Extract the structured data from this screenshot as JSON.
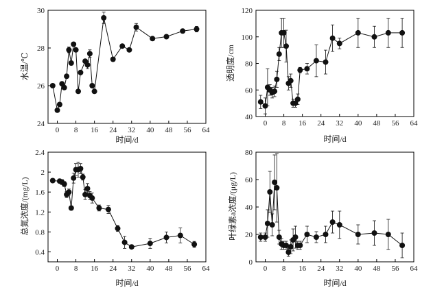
{
  "chart_data": [
    {
      "id": "water-temp",
      "type": "scatter",
      "xlabel": "时间/d",
      "ylabel": "水温/℃",
      "xlim": [
        -4,
        64
      ],
      "ylim": [
        24,
        30
      ],
      "xticks": [
        0,
        8,
        16,
        24,
        32,
        40,
        48,
        56,
        64
      ],
      "yticks": [
        24,
        26,
        28,
        30
      ],
      "series": [
        {
          "x": [
            -2,
            0,
            1,
            2,
            3,
            4,
            5,
            6,
            7,
            8,
            9,
            10,
            12,
            13,
            14,
            15,
            16,
            20,
            24,
            28,
            31,
            34,
            41,
            47,
            54,
            60
          ],
          "y": [
            26.0,
            24.7,
            25.0,
            26.1,
            25.9,
            26.5,
            27.9,
            27.2,
            28.2,
            27.9,
            25.7,
            26.7,
            27.3,
            27.1,
            27.7,
            26.0,
            25.7,
            29.6,
            27.4,
            28.1,
            27.9,
            29.1,
            28.5,
            28.6,
            28.9,
            29.0
          ],
          "err": [
            0.0,
            0.1,
            0.1,
            0.0,
            0.1,
            0.1,
            0.15,
            0.1,
            0.1,
            0.1,
            0.1,
            0.1,
            0.1,
            0.2,
            0.2,
            0.1,
            0.1,
            0.3,
            0.1,
            0.1,
            0.1,
            0.2,
            0.1,
            0.1,
            0.1,
            0.15
          ]
        }
      ]
    },
    {
      "id": "transparency",
      "type": "scatter",
      "xlabel": "时间/d",
      "ylabel": "透明度/cm",
      "xlim": [
        -4,
        64
      ],
      "ylim": [
        40,
        120
      ],
      "xticks": [
        0,
        8,
        16,
        24,
        32,
        40,
        48,
        56,
        64
      ],
      "yticks": [
        40,
        60,
        80,
        100,
        120
      ],
      "series": [
        {
          "x": [
            -2,
            0,
            1,
            2,
            3,
            4,
            5,
            6,
            7,
            8,
            9,
            10,
            11,
            12,
            13,
            14,
            15,
            18,
            22,
            26,
            29,
            32,
            40,
            47,
            53,
            59
          ],
          "y": [
            51,
            48,
            62,
            60,
            58,
            59,
            68,
            87,
            103,
            103,
            93,
            65,
            67,
            50,
            50,
            53,
            75,
            76,
            82,
            81,
            99,
            95,
            103,
            100,
            103,
            103
          ],
          "err": [
            5,
            6,
            14,
            4,
            4,
            4,
            6,
            5,
            11,
            11,
            12,
            5,
            5,
            3,
            3,
            4,
            2,
            4,
            12,
            9,
            10,
            4,
            11,
            8,
            11,
            11
          ]
        }
      ]
    },
    {
      "id": "total-nitrogen",
      "type": "scatter",
      "xlabel": "时间/d",
      "ylabel": "总氮浓度/(mg/L)",
      "xlim": [
        -4,
        64
      ],
      "ylim": [
        0.2,
        2.4
      ],
      "xticks": [
        0,
        8,
        16,
        24,
        32,
        40,
        48,
        56,
        64
      ],
      "yticks": [
        0.4,
        0.8,
        1.2,
        1.6,
        2.0,
        2.4
      ],
      "series": [
        {
          "x": [
            -2,
            1,
            2,
            3,
            4,
            5,
            6,
            7,
            8,
            9,
            10,
            11,
            12,
            13,
            14,
            15,
            18,
            22,
            26,
            29,
            32,
            40,
            47,
            53,
            59
          ],
          "y": [
            1.83,
            1.82,
            1.8,
            1.76,
            1.55,
            1.6,
            1.28,
            1.88,
            2.05,
            2.05,
            2.07,
            1.9,
            1.55,
            1.67,
            1.53,
            1.48,
            1.28,
            1.25,
            0.87,
            0.59,
            0.5,
            0.57,
            0.69,
            0.73,
            0.55
          ],
          "err": [
            0.04,
            0.04,
            0.05,
            0.05,
            0.06,
            0.06,
            0.04,
            0.1,
            0.12,
            0.15,
            0.1,
            0.06,
            0.1,
            0.1,
            0.08,
            0.1,
            0.06,
            0.08,
            0.06,
            0.12,
            0.02,
            0.1,
            0.11,
            0.15,
            0.06
          ]
        }
      ]
    },
    {
      "id": "chlorophyll-a",
      "type": "scatter",
      "xlabel": "时间/d",
      "ylabel": "叶绿素a浓度/(μg/L)",
      "xlim": [
        -4,
        64
      ],
      "ylim": [
        0,
        80
      ],
      "xticks": [
        0,
        8,
        16,
        24,
        32,
        40,
        48,
        56,
        64
      ],
      "yticks": [
        0,
        20,
        40,
        60,
        80
      ],
      "series": [
        {
          "x": [
            -2,
            0,
            1,
            2,
            3,
            4,
            5,
            6,
            7,
            8,
            9,
            10,
            11,
            12,
            13,
            14,
            15,
            18,
            22,
            26,
            29,
            32,
            40,
            47,
            53,
            59
          ],
          "y": [
            18,
            18,
            28,
            51,
            27,
            58,
            54,
            18,
            13,
            12,
            12,
            7,
            11,
            16,
            18,
            12,
            12,
            20,
            18,
            20,
            29,
            27,
            20,
            21,
            20,
            12
          ],
          "err": [
            3,
            3,
            10,
            15,
            8,
            20,
            25,
            5,
            4,
            3,
            3,
            3,
            5,
            8,
            8,
            3,
            3,
            6,
            4,
            6,
            8,
            10,
            7,
            9,
            11,
            9
          ]
        }
      ]
    }
  ]
}
